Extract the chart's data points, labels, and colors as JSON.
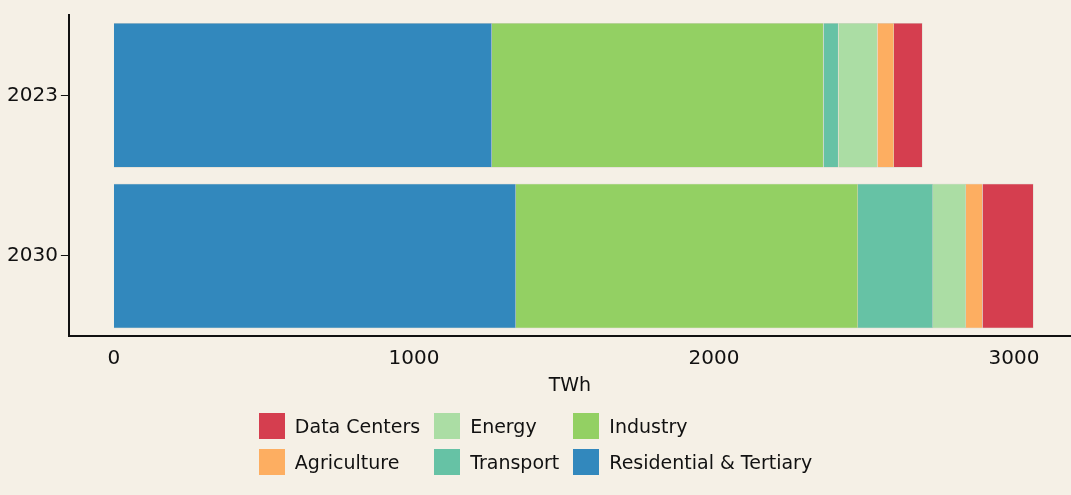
{
  "chart_data": {
    "type": "bar",
    "orientation": "horizontal",
    "stacked": true,
    "xlabel": "TWh",
    "categories": [
      "2023",
      "2030"
    ],
    "series": [
      {
        "name": "Residential & Tertiary",
        "color": "#3288bd",
        "values": [
          1260,
          1340
        ]
      },
      {
        "name": "Industry",
        "color": "#93d063",
        "values": [
          1105,
          1140
        ]
      },
      {
        "name": "Transport",
        "color": "#66c2a5",
        "values": [
          50,
          250
        ]
      },
      {
        "name": "Energy",
        "color": "#abdda4",
        "values": [
          130,
          110
        ]
      },
      {
        "name": "Agriculture",
        "color": "#fdae61",
        "values": [
          55,
          55
        ]
      },
      {
        "name": "Data Centers",
        "color": "#d53e4f",
        "values": [
          95,
          170
        ]
      }
    ],
    "xlim": [
      -150,
      3190
    ],
    "xticks": [
      0,
      1000,
      2000,
      3000
    ],
    "grid": false,
    "legend": "bottom"
  }
}
